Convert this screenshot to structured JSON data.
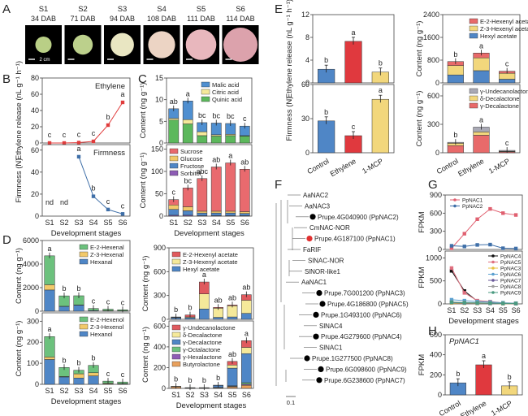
{
  "figure": {
    "panel_labels": [
      "A",
      "B",
      "C",
      "D",
      "E",
      "F",
      "G",
      "H"
    ],
    "photo_panel": {
      "stages": [
        {
          "stage": "S1",
          "dab": "34 DAB",
          "color": "#b9cf86"
        },
        {
          "stage": "S2",
          "dab": "71 DAB",
          "color": "#bcd08c"
        },
        {
          "stage": "S3",
          "dab": "94 DAB",
          "color": "#e9e6c2"
        },
        {
          "stage": "S4",
          "dab": "108 DAB",
          "color": "#ecd4c4"
        },
        {
          "stage": "S5",
          "dab": "111 DAB",
          "color": "#e8b7bd"
        },
        {
          "stage": "S6",
          "dab": "114 DAB",
          "color": "#dca2ac"
        }
      ],
      "scale_bar": "2 cm"
    },
    "colors": {
      "red": "#e05a5e",
      "yellow": "#f2d77c",
      "blue": "#4f86c6",
      "green": "#5cb85c",
      "purple": "#8e5cb5",
      "orange": "#e8a05c",
      "grey": "#a9a9b5",
      "pale_yellow": "#f5e99a",
      "lightgreen": "#67c07a",
      "salmon": "#ea6b6b",
      "line_red": "#e06060",
      "line_blue": "#3f6fa8"
    },
    "phylo_tree": {
      "taxa": [
        {
          "label": "AaNAC2",
          "marker": "none"
        },
        {
          "label": "AaNAC3",
          "marker": "none"
        },
        {
          "label": "Prupe.4G040900 (PpNAC2)",
          "marker": "black"
        },
        {
          "label": "CmNAC-NOR",
          "marker": "none"
        },
        {
          "label": "Prupe.4G187100 (PpNAC1)",
          "marker": "red"
        },
        {
          "label": "FaRIF",
          "marker": "none"
        },
        {
          "label": "SlNAC-NOR",
          "marker": "none"
        },
        {
          "label": "SlNOR-like1",
          "marker": "none"
        },
        {
          "label": "AaNAC1",
          "marker": "none"
        },
        {
          "label": "Prupe.7G001200 (PpNAC3)",
          "marker": "black"
        },
        {
          "label": "Prupe.4G186800 (PpNAC5)",
          "marker": "black"
        },
        {
          "label": "Prupe.1G493100 (PpNAC6)",
          "marker": "black"
        },
        {
          "label": "SlNAC4",
          "marker": "none"
        },
        {
          "label": "Prupe.4G279600 (PpNAC4)",
          "marker": "black"
        },
        {
          "label": "SlNAC1",
          "marker": "none"
        },
        {
          "label": "Prupe.1G277500 (PpNAC8)",
          "marker": "black"
        },
        {
          "label": "Prupe.6G098600 (PpNAC9)",
          "marker": "black"
        },
        {
          "label": "Prupe.6G238600 (PpNAC7)",
          "marker": "black"
        }
      ],
      "scale_label": "0.1"
    }
  },
  "chart_data": [
    {
      "id": "B-top",
      "panel": "B",
      "type": "line",
      "title": "Ethylene",
      "categories": [
        "S1",
        "S2",
        "S3",
        "S4",
        "S5",
        "S6"
      ],
      "ylabel": "Ethylene release (nL g⁻¹ h⁻¹)",
      "ylim": [
        0,
        80
      ],
      "yticks": [
        0,
        20,
        40,
        60,
        80
      ],
      "series": [
        {
          "name": "Ethylene",
          "color": "#e03c3c",
          "values": [
            0,
            0,
            0.5,
            2,
            22,
            50
          ],
          "sig": [
            "c",
            "c",
            "c",
            "c",
            "b",
            "a"
          ]
        }
      ]
    },
    {
      "id": "B-bottom",
      "panel": "B",
      "type": "line",
      "title": "Firmness",
      "categories": [
        "S1",
        "S2",
        "S3",
        "S4",
        "S5",
        "S6"
      ],
      "xlabel": "Development stages",
      "ylabel": "Firmness (N)",
      "ylim": [
        0,
        65
      ],
      "yticks": [
        0,
        20,
        40,
        60
      ],
      "series": [
        {
          "name": "Firmness",
          "color": "#3f6fa8",
          "values": [
            null,
            null,
            54,
            18,
            6,
            2
          ],
          "sig": [
            "nd",
            "nd",
            "a",
            "b",
            "c",
            "c"
          ]
        }
      ]
    },
    {
      "id": "C-top",
      "panel": "C",
      "type": "bar",
      "stacked": true,
      "categories": [
        "S1",
        "S2",
        "S3",
        "S4",
        "S5",
        "S6"
      ],
      "ylabel": "Content (ng g⁻¹)",
      "ylim": [
        0,
        15
      ],
      "yticks": [
        0,
        5,
        10,
        15
      ],
      "legend": "top-right",
      "series": [
        {
          "name": "Quinic acid",
          "color": "#5cb85c",
          "values": [
            5.3,
            4.4,
            1.7,
            1.6,
            1.7,
            1.6
          ]
        },
        {
          "name": "Citric acid",
          "color": "#f5e99a",
          "values": [
            0.4,
            1.0,
            0.9,
            0.3,
            0.3,
            0.1
          ]
        },
        {
          "name": "Malic acid",
          "color": "#4f8fd0",
          "values": [
            2.2,
            4.3,
            2.1,
            2.7,
            2.5,
            2.2
          ]
        }
      ],
      "sig": [
        "ab",
        "a",
        "bc",
        "bc",
        "bc",
        "c"
      ]
    },
    {
      "id": "C-bottom",
      "panel": "C",
      "type": "bar",
      "stacked": true,
      "categories": [
        "S1",
        "S2",
        "S3",
        "S4",
        "S5",
        "S6"
      ],
      "xlabel": "Development stages",
      "ylabel": "Content (ng g⁻¹)",
      "ylim": [
        0,
        160
      ],
      "yticks": [
        0,
        50,
        100,
        150
      ],
      "legend": "top-left",
      "series": [
        {
          "name": "Sorbitol",
          "color": "#8e5cb5",
          "values": [
            2,
            2,
            1,
            1,
            1,
            1
          ]
        },
        {
          "name": "Fructose",
          "color": "#4f86c6",
          "values": [
            13,
            10,
            6,
            6,
            6,
            5
          ]
        },
        {
          "name": "Glucose",
          "color": "#f2c96a",
          "values": [
            10,
            9,
            4,
            4,
            4,
            4
          ]
        },
        {
          "name": "Sucrose",
          "color": "#e96a6e",
          "values": [
            12,
            42,
            73,
            99,
            108,
            95
          ]
        }
      ],
      "sig": [
        "c",
        "bc",
        "abc",
        "ab",
        "a",
        "ab"
      ]
    },
    {
      "id": "D-left-top",
      "panel": "D",
      "type": "bar",
      "stacked": true,
      "categories": [
        "S1",
        "S2",
        "S3",
        "S4",
        "S5",
        "S6"
      ],
      "ylabel": "Content (ng g⁻¹)",
      "ylim": [
        0,
        6000
      ],
      "yticks": [
        0,
        2000,
        4000,
        6000
      ],
      "legend": "top-right",
      "series": [
        {
          "name": "Hexanal",
          "color": "#4f86c6",
          "values": [
            1800,
            400,
            500,
            50,
            30,
            20
          ]
        },
        {
          "name": "Z-3-Hexenal",
          "color": "#f2c96a",
          "values": [
            450,
            20,
            30,
            10,
            10,
            10
          ]
        },
        {
          "name": "E-2-Hexenal",
          "color": "#6cc17d",
          "values": [
            2450,
            880,
            780,
            170,
            130,
            90
          ]
        }
      ],
      "sig": [
        "a",
        "b",
        "b",
        "c",
        "c",
        "c"
      ]
    },
    {
      "id": "D-left-bottom",
      "panel": "D",
      "type": "bar",
      "stacked": true,
      "categories": [
        "S1",
        "S2",
        "S3",
        "S4",
        "S5",
        "S6"
      ],
      "xlabel": "Development stages",
      "ylabel": "Content (ng g⁻¹)",
      "ylim": [
        0,
        340
      ],
      "yticks": [
        0,
        100,
        200,
        300
      ],
      "legend": "top-right",
      "series": [
        {
          "name": "Hexanol",
          "color": "#4f86c6",
          "values": [
            118,
            35,
            30,
            40,
            2,
            2
          ]
        },
        {
          "name": "Z-3-Hexenol",
          "color": "#f2c96a",
          "values": [
            12,
            2,
            20,
            15,
            3,
            1
          ]
        },
        {
          "name": "E-2-Hexenol",
          "color": "#6cc17d",
          "values": [
            97,
            43,
            17,
            35,
            10,
            8
          ]
        }
      ],
      "sig": [
        "a",
        "b",
        "b",
        "b",
        "c",
        "c"
      ]
    },
    {
      "id": "D-right-top",
      "panel": "D",
      "type": "bar",
      "stacked": true,
      "categories": [
        "S1",
        "S2",
        "S3",
        "S4",
        "S5",
        "S6"
      ],
      "ylabel": "Content (ng g⁻¹)",
      "ylim": [
        0,
        900
      ],
      "yticks": [
        0,
        300,
        600,
        900
      ],
      "legend": "top-left",
      "series": [
        {
          "name": "Hexyl acetate",
          "color": "#4f86c6",
          "values": [
            20,
            20,
            130,
            25,
            30,
            75
          ]
        },
        {
          "name": "Z-3-Hexenyl acetate",
          "color": "#f5e99a",
          "values": [
            5,
            10,
            190,
            115,
            140,
            165
          ]
        },
        {
          "name": "E-2-Hexenyl acetate",
          "color": "#e05a5e",
          "values": [
            5,
            25,
            150,
            10,
            10,
            70
          ]
        }
      ],
      "sig": [
        "b",
        "b",
        "a",
        "ab",
        "ab",
        "ab"
      ]
    },
    {
      "id": "D-right-bottom",
      "panel": "D",
      "type": "bar",
      "stacked": true,
      "categories": [
        "S1",
        "S2",
        "S3",
        "S4",
        "S5",
        "S6"
      ],
      "xlabel": "Development stages",
      "ylabel": "Content (ng g⁻¹)",
      "ylim": [
        0,
        650
      ],
      "yticks": [
        0,
        200,
        400,
        600
      ],
      "legend": "top-left",
      "series": [
        {
          "name": "Butyrolactone",
          "color": "#e8a05c",
          "values": [
            15,
            2,
            2,
            5,
            15,
            30
          ]
        },
        {
          "name": "γ-Hexalactone",
          "color": "#8e5cb5",
          "values": [
            1,
            1,
            1,
            2,
            5,
            10
          ]
        },
        {
          "name": "γ-Octalactone",
          "color": "#6cc17d",
          "values": [
            1,
            1,
            1,
            2,
            5,
            15
          ]
        },
        {
          "name": "γ-Decalactone",
          "color": "#4f86c6",
          "values": [
            2,
            2,
            2,
            20,
            170,
            280
          ]
        },
        {
          "name": "δ-Decalactone",
          "color": "#f5e99a",
          "values": [
            1,
            1,
            1,
            2,
            30,
            60
          ]
        },
        {
          "name": "γ-Undecanolactone",
          "color": "#e05a5e",
          "values": [
            0,
            0,
            0,
            0,
            35,
            65
          ]
        }
      ],
      "sig": [
        "b",
        "b",
        "b",
        "b",
        "ab",
        "a"
      ]
    },
    {
      "id": "E-left-top",
      "panel": "E",
      "type": "bar",
      "categories": [
        "Control",
        "Ethylene",
        "1-MCP"
      ],
      "ylabel": "Ethylene release (nL g⁻¹ h⁻¹)",
      "ylim": [
        0,
        12
      ],
      "yticks": [
        0,
        4,
        8,
        12
      ],
      "values": [
        2.4,
        7.3,
        1.9
      ],
      "colors": [
        "#4f86c6",
        "#e0393e",
        "#f2d77c"
      ],
      "sig": [
        "b",
        "a",
        "b"
      ]
    },
    {
      "id": "E-left-bottom",
      "panel": "E",
      "type": "bar",
      "categories": [
        "Control",
        "Ethylene",
        "1-MCP"
      ],
      "ylabel": "Firmness (N)",
      "ylim": [
        0,
        60
      ],
      "yticks": [
        0,
        30,
        60
      ],
      "values": [
        28,
        15,
        47
      ],
      "colors": [
        "#4f86c6",
        "#e0393e",
        "#f2d77c"
      ],
      "sig": [
        "b",
        "c",
        "a"
      ]
    },
    {
      "id": "E-right-top",
      "panel": "E",
      "type": "bar",
      "stacked": true,
      "categories": [
        "Control",
        "Ethylene",
        "1-MCP"
      ],
      "ylabel": "Content (ng g⁻¹)",
      "ylim": [
        0,
        2400
      ],
      "yticks": [
        0,
        800,
        1600,
        2400
      ],
      "legend": "top-right",
      "series": [
        {
          "name": "Hexyl acetate",
          "color": "#4f86c6",
          "values": [
            280,
            430,
            130
          ]
        },
        {
          "name": "Z-3-Hexenyl acetate",
          "color": "#f2d77c",
          "values": [
            330,
            450,
            210
          ]
        },
        {
          "name": "E-2-Hexenyl acetate",
          "color": "#e86a6a",
          "values": [
            140,
            170,
            70
          ]
        }
      ],
      "sig": [
        "b",
        "a",
        "c"
      ]
    },
    {
      "id": "E-right-bottom",
      "panel": "E",
      "type": "bar",
      "stacked": true,
      "categories": [
        "Control",
        "Ethylene",
        "1-MCP"
      ],
      "xlabel": "",
      "ylabel": "Content (ng g⁻¹)",
      "ylim": [
        0,
        720
      ],
      "yticks": [
        0,
        300,
        600
      ],
      "legend": "top-right",
      "series": [
        {
          "name": "γ-Decalactone",
          "color": "#e86a6a",
          "values": [
            75,
            185,
            10
          ]
        },
        {
          "name": "δ-Decalactone",
          "color": "#f2d77c",
          "values": [
            25,
            35,
            5
          ]
        },
        {
          "name": "γ-Undecanolactone",
          "color": "#a9a9b5",
          "values": [
            10,
            50,
            10
          ]
        }
      ],
      "sig": [
        "b",
        "a",
        "c"
      ]
    },
    {
      "id": "G-top",
      "panel": "G",
      "type": "line",
      "categories": [
        "S1",
        "S2",
        "S3",
        "S4",
        "S5",
        "S6"
      ],
      "ylabel": "FPKM",
      "ylim": [
        0,
        900
      ],
      "yticks": [
        0,
        300,
        600,
        900
      ],
      "legend": "top-left",
      "series": [
        {
          "name": "PpNAC1",
          "color": "#e06070",
          "values": [
            20,
            260,
            500,
            670,
            600,
            570
          ]
        },
        {
          "name": "PpNAC2",
          "color": "#3f6fa8",
          "values": [
            60,
            50,
            75,
            80,
            20,
            15
          ]
        }
      ]
    },
    {
      "id": "G-bottom",
      "panel": "G",
      "type": "line",
      "categories": [
        "S1",
        "S2",
        "S3",
        "S4",
        "S5",
        "S6"
      ],
      "xlabel": "Development stages",
      "ylabel": "FPKM",
      "ylim": [
        0,
        1150
      ],
      "yticks": [
        0,
        500,
        1000
      ],
      "legend": "top-right",
      "series": [
        {
          "name": "PpNAC4",
          "color": "#111111",
          "values": [
            720,
            280,
            60,
            40,
            20,
            10
          ]
        },
        {
          "name": "PpNAC5",
          "color": "#e07080",
          "values": [
            780,
            240,
            70,
            50,
            20,
            10
          ]
        },
        {
          "name": "PpNAC3",
          "color": "#e8c040",
          "values": [
            20,
            15,
            10,
            10,
            5,
            5
          ]
        },
        {
          "name": "PpNAC6",
          "color": "#5aa0d0",
          "values": [
            90,
            70,
            50,
            40,
            25,
            15
          ]
        },
        {
          "name": "PpNAC7",
          "color": "#6a5a9a",
          "values": [
            30,
            20,
            15,
            10,
            8,
            5
          ]
        },
        {
          "name": "PpNAC8",
          "color": "#a0a0a0",
          "values": [
            40,
            30,
            25,
            20,
            15,
            10
          ]
        },
        {
          "name": "PpNAC9",
          "color": "#4a9a80",
          "values": [
            35,
            25,
            20,
            15,
            10,
            8
          ]
        }
      ]
    },
    {
      "id": "H",
      "panel": "H",
      "type": "bar",
      "title": "PpNAC1",
      "categories": [
        "Control",
        "Ethylene",
        "1-MCP"
      ],
      "ylabel": "FPKM",
      "ylim": [
        0,
        600
      ],
      "yticks": [
        0,
        200,
        400,
        600
      ],
      "values": [
        120,
        300,
        90
      ],
      "colors": [
        "#4f86c6",
        "#e0393e",
        "#f2d77c"
      ],
      "sig": [
        "b",
        "a",
        "b"
      ]
    }
  ]
}
